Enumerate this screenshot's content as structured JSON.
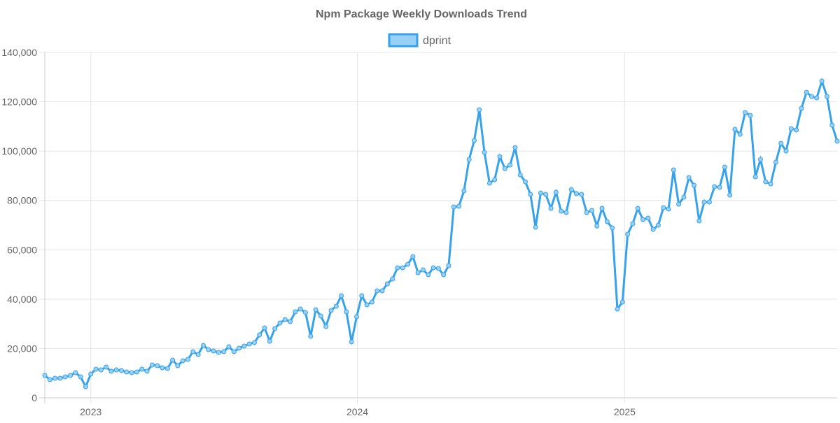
{
  "chart_data": {
    "type": "line",
    "title": "Npm Package Weekly Downloads Trend",
    "xlabel": "",
    "ylabel": "",
    "ylim": [
      0,
      140000
    ],
    "y_ticks": [
      "0",
      "20,000",
      "40,000",
      "60,000",
      "80,000",
      "100,000",
      "120,000",
      "140,000"
    ],
    "x_ticks": [
      {
        "label": "2023",
        "date": "2023-01-01"
      },
      {
        "label": "2024",
        "date": "2024-01-01"
      },
      {
        "label": "2025",
        "date": "2025-01-01"
      }
    ],
    "grid": true,
    "legend_position": "top",
    "series": [
      {
        "name": "dprint",
        "color": "#36a2eb",
        "fill_color": "#9ad0f5",
        "values": [
          9100,
          7370,
          7940,
          7940,
          8500,
          9070,
          10200,
          8500,
          4530,
          9640,
          11620,
          11340,
          12470,
          10770,
          11340,
          11050,
          10490,
          10200,
          10490,
          11620,
          10770,
          13320,
          13040,
          12190,
          11900,
          15300,
          13040,
          15020,
          15590,
          18700,
          17570,
          21260,
          19550,
          18990,
          18420,
          18700,
          20690,
          18700,
          20120,
          20970,
          21820,
          22390,
          25510,
          28340,
          22960,
          28060,
          30320,
          31740,
          30890,
          34860,
          35990,
          34570,
          24940,
          35710,
          33160,
          28910,
          35430,
          37130,
          41380,
          34860,
          22670,
          32870,
          41380,
          37690,
          38830,
          43360,
          43360,
          46190,
          48180,
          52710,
          52710,
          54130,
          57250,
          50730,
          51860,
          49880,
          52710,
          52430,
          49880,
          53560,
          77370,
          77650,
          83890,
          96640,
          104290,
          116760,
          99470,
          87000,
          88420,
          97770,
          92960,
          94370,
          101460,
          90400,
          87570,
          82470,
          69150,
          83040,
          82470,
          76800,
          83320,
          75670,
          75100,
          84450,
          82750,
          82470,
          75100,
          75950,
          69720,
          76800,
          71420,
          68870,
          35990,
          38830,
          66320,
          70570,
          76800,
          72270,
          72830,
          68300,
          70000,
          77080,
          76520,
          92390,
          78500,
          81340,
          89270,
          86150,
          71700,
          79350,
          79350,
          85590,
          85300,
          93520,
          82190,
          108830,
          106840,
          115630,
          114490,
          89550,
          96640,
          87570,
          86720,
          95510,
          103160,
          100040,
          109110,
          108540,
          117330,
          123850,
          122150,
          121580,
          128380,
          122150,
          110530,
          104010
        ]
      }
    ]
  }
}
